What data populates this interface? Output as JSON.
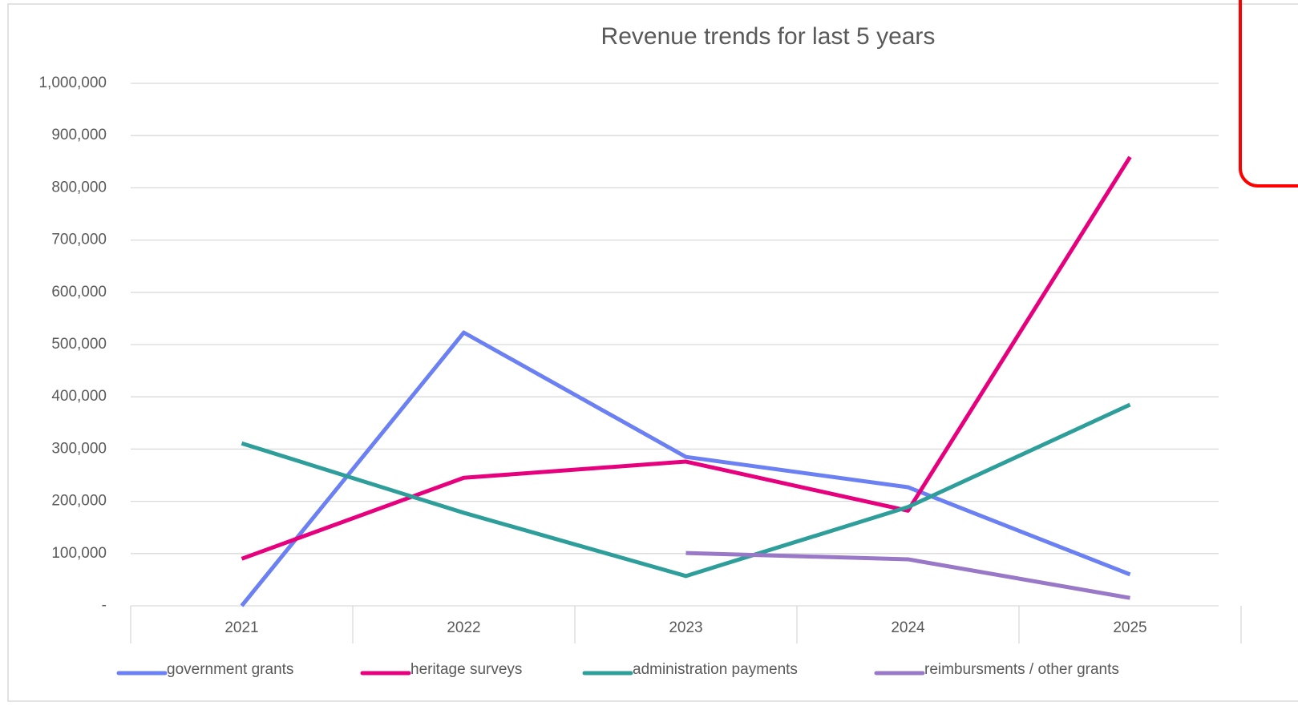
{
  "chart_data": {
    "type": "line",
    "title": "Revenue trends for last 5 years",
    "categories": [
      "2021",
      "2022",
      "2023",
      "2024",
      "2025"
    ],
    "series": [
      {
        "name": "government grants",
        "color": "#6b80f2",
        "values": [
          0,
          523000,
          285000,
          227000,
          60000
        ]
      },
      {
        "name": "heritage surveys",
        "color": "#e6007e",
        "values": [
          90000,
          245000,
          276000,
          182000,
          859000
        ]
      },
      {
        "name": "administration payments",
        "color": "#2e9e9a",
        "values": [
          311000,
          178000,
          57000,
          189000,
          385000
        ]
      },
      {
        "name": "reimbursments / other grants",
        "color": "#9a78c8",
        "values": [
          null,
          null,
          101000,
          89000,
          15000
        ]
      }
    ],
    "ylim": [
      0,
      1000000
    ],
    "yticks": [
      {
        "value": 0,
        "label": "-"
      },
      {
        "value": 100000,
        "label": "100,000"
      },
      {
        "value": 200000,
        "label": "200,000"
      },
      {
        "value": 300000,
        "label": "300,000"
      },
      {
        "value": 400000,
        "label": "400,000"
      },
      {
        "value": 500000,
        "label": "500,000"
      },
      {
        "value": 600000,
        "label": "600,000"
      },
      {
        "value": 700000,
        "label": "700,000"
      },
      {
        "value": 800000,
        "label": "800,000"
      },
      {
        "value": 900000,
        "label": "900,000"
      },
      {
        "value": 1000000,
        "label": "1,000,000"
      }
    ],
    "grid": true,
    "legend": "bottom"
  }
}
